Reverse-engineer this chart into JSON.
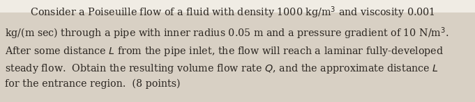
{
  "fig_width": 6.81,
  "fig_height": 1.47,
  "dpi": 100,
  "bg_top_color": "#f0ece4",
  "bg_main_color": "#d8d0c4",
  "text_color": "#2a2520",
  "fontsize": 10.3,
  "linespacing": 1.52,
  "indent": "        ",
  "line1": "        Consider a Poiseuille flow of a fluid with density 1000 kg/m$^3$ and viscosity 0.001",
  "line2": "kg/(m sec) through a pipe with inner radius 0.05 m and a pressure gradient of 10 N/m$^3$.",
  "line3": "After some distance $L$ from the pipe inlet, the flow will reach a laminar fully-developed",
  "line4": "steady flow.  Obtain the resulting volume flow rate $Q$, and the approximate distance $L$",
  "line5": "for the entrance region.  (8 points)"
}
